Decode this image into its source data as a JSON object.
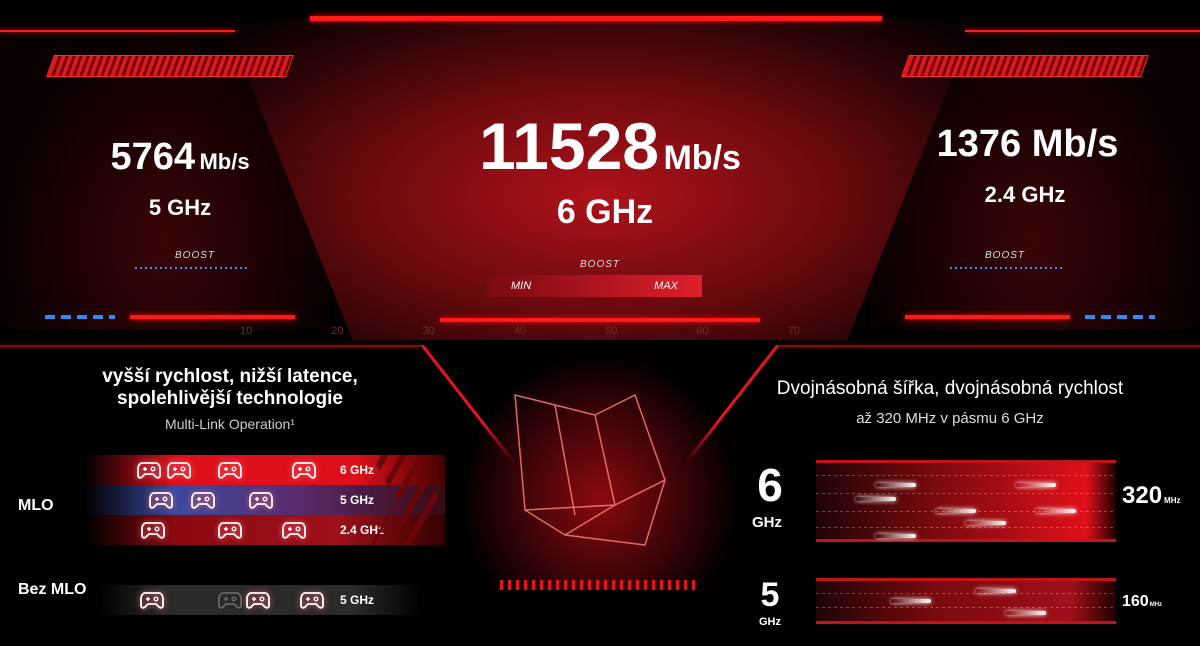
{
  "left_panel": {
    "speed_value": "5764",
    "speed_unit": "Mb/s",
    "band": "5 GHz",
    "boost_label": "BOOST"
  },
  "center_panel": {
    "speed_value": "11528",
    "speed_unit": "Mb/s",
    "band": "6 GHz",
    "boost_label": "BOOST",
    "meter_min": "MIN",
    "meter_max": "MAX",
    "meter_level": 1.0,
    "scale_ticks": [
      "10",
      "20",
      "30",
      "40",
      "50",
      "60",
      "70"
    ]
  },
  "right_panel": {
    "speed_value": "1376",
    "speed_unit": "Mb/s",
    "band": "2.4 GHz",
    "boost_label": "BOOST"
  },
  "mlo": {
    "title_line1": "vyšší rychlost, nižší latence,",
    "title_line2": "spolehlivější technologie",
    "subtitle": "Multi-Link Operation¹",
    "mlo_label": "MLO",
    "no_mlo_label": "Bez MLO",
    "bands": [
      {
        "label": "6 GHz"
      },
      {
        "label": "5 GHz"
      },
      {
        "label": "2.4 GHz"
      }
    ],
    "no_mlo_band": "5 GHz"
  },
  "channel": {
    "title": "Dvojnásobná šířka, dvojnásobná rychlost",
    "subtitle": "až 320 MHz v pásmu 6 GHz",
    "lanes": [
      {
        "band_number": "6",
        "band_unit": "GHz",
        "width_value": "320",
        "width_unit": "MHz"
      },
      {
        "band_number": "5",
        "band_unit": "GHz",
        "width_value": "160",
        "width_unit": "MHz"
      }
    ]
  },
  "colors": {
    "accent": "#e0161c",
    "blue": "#2a8cff",
    "background": "#000000"
  }
}
